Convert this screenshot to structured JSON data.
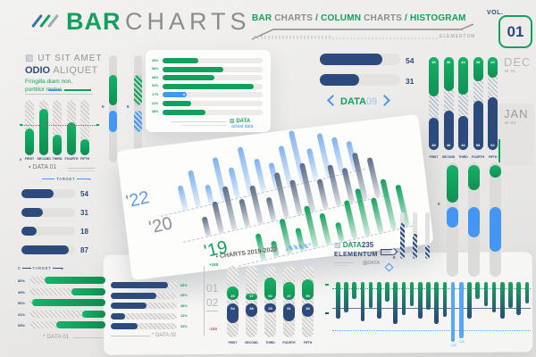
{
  "header": {
    "title_bold": "BAR",
    "title_light": "CHARTS",
    "subtitle_segments": [
      {
        "text": "BAR",
        "tone": "green"
      },
      {
        "text": " CHARTS ",
        "tone": "gray"
      },
      {
        "text": "/ ",
        "tone": "green"
      },
      {
        "text": "COLUMN",
        "tone": "green"
      },
      {
        "text": " CHARTS ",
        "tone": "gray"
      },
      {
        "text": "/ ",
        "tone": "green"
      },
      {
        "text": "HISTOGRAM",
        "tone": "green"
      }
    ],
    "subtitle_note": "ELEMENTUM",
    "vol_label": "VOL.",
    "vol_number": "01"
  },
  "intro": {
    "icon": "hatch-square-icon",
    "line1": "UT SIT AMET",
    "line2_bold": "ODIO",
    "line2_light": "ALIQUET",
    "desc": "Fringilla diam non, porttitor metus."
  },
  "colors": {
    "green": "#12A15C",
    "navy": "#2C4A7C",
    "blue": "#4596F2",
    "light_blue": "#57A7F6",
    "back_blue": "#7FB3F0",
    "slate": "#5C6E88",
    "track": "#DCDBD9",
    "text_gray": "#9B9B99",
    "minus_red": "#B0584A"
  },
  "chart_data": [
    {
      "id": "intro-columns",
      "type": "bar",
      "title": "DATA 01",
      "zero_label": "0",
      "categories": [
        "FIRST",
        "SECOND",
        "THIRD",
        "FOURTH",
        "FIFTH"
      ],
      "values": [
        48,
        84,
        37,
        60,
        29
      ],
      "target_line": 55,
      "ylim": [
        0,
        100
      ],
      "caption": "DATA 01"
    },
    {
      "id": "navy-target-bars",
      "type": "bar",
      "orientation": "horizontal",
      "label": "TARGET",
      "values": [
        54,
        31,
        18,
        87
      ],
      "xlim": [
        0,
        100
      ]
    },
    {
      "id": "green-target-bars",
      "type": "bar",
      "orientation": "horizontal",
      "label": "TARGET",
      "zero_label": "0",
      "caption": "DATA 01",
      "categories": [
        "80%",
        "45%",
        "96%",
        "31%",
        "65%"
      ],
      "values": [
        80,
        45,
        96,
        31,
        65
      ],
      "align": "right"
    },
    {
      "id": "card-hbars",
      "type": "bar",
      "orientation": "horizontal",
      "categories": [
        "30%",
        "58%",
        "48%",
        "92%",
        "17%",
        "22%",
        "38%"
      ],
      "values": [
        30,
        58,
        48,
        92,
        17,
        22,
        38
      ],
      "highlight_index": 4,
      "caption": "DATA",
      "caption_sub": "actual data"
    },
    {
      "id": "pill-duo",
      "type": "bar",
      "zero_labels": [
        "0",
        "0"
      ],
      "series": [
        {
          "name": "solid",
          "up": 34,
          "down": 24
        },
        {
          "name": "hatched",
          "up": 34,
          "down": 24
        }
      ]
    },
    {
      "id": "perspective-columns",
      "type": "bar",
      "caption": "CHARTS 2019-2022",
      "series": [
        {
          "name": "'22",
          "color": "#7FB3F0",
          "label_color": "#5E9BE8",
          "values": [
            28,
            42,
            22,
            50,
            35,
            55,
            38,
            30,
            46,
            60,
            36,
            50,
            42,
            34
          ]
        },
        {
          "name": "'20",
          "color": "#5C6E88",
          "label_color": "#8A8F98",
          "values": [
            22,
            36,
            50,
            32,
            44,
            27,
            52,
            40,
            56,
            34,
            47,
            40,
            54,
            45
          ]
        },
        {
          "name": "'19",
          "color": "#12A15C",
          "label_color": "#12A15C",
          "values": [
            30,
            18,
            40,
            26,
            48,
            36,
            22,
            44,
            54,
            40,
            58,
            48
          ]
        }
      ]
    },
    {
      "id": "data09-bars",
      "type": "bar",
      "orientation": "horizontal",
      "label_bold": "DATA",
      "label_num": "09",
      "values": [
        54,
        31
      ],
      "xlim": [
        0,
        100
      ]
    },
    {
      "id": "dec-jan-columns",
      "type": "bar",
      "categories": [
        "FIRST",
        "SECOND",
        "THIRD",
        "FOURTH",
        "FIFTH"
      ],
      "side_labels": [
        {
          "month": "DEC",
          "week": "W 01"
        },
        {
          "month": "JAN",
          "week": "W 02"
        }
      ],
      "series": [
        {
          "name": "top",
          "color": "green",
          "values": [
            46,
            40,
            44,
            28,
            24
          ]
        },
        {
          "name": "bottom",
          "color": "navy",
          "values": [
            38,
            46,
            40,
            58,
            62
          ]
        }
      ]
    },
    {
      "id": "grouped-pills",
      "type": "bar",
      "axis_top": "+100",
      "axis_bottom": "-100",
      "legend": [
        "01",
        "02"
      ],
      "categories": [
        "FIRST",
        "SECOND",
        "THIRD",
        "FOURTH",
        "FIFTH"
      ],
      "series": [
        {
          "name": "01",
          "color": "green",
          "values": [
            35,
            17,
            60,
            47,
            55
          ]
        },
        {
          "name": "02",
          "color": "navy",
          "values": [
            54,
            38,
            25,
            51,
            38
          ]
        }
      ]
    },
    {
      "id": "data02-bars",
      "type": "bar",
      "orientation": "horizontal",
      "caption": "DATA 02",
      "categories": [
        "85%",
        "65%",
        "48%",
        "12%",
        "33%"
      ],
      "values": [
        85,
        65,
        48,
        12,
        33
      ]
    },
    {
      "id": "right-pills",
      "type": "bar",
      "zero_label": "0",
      "series": [
        {
          "name": "up",
          "color": "green",
          "values": [
            42,
            28,
            14
          ]
        },
        {
          "name": "down",
          "color": "blue",
          "values": [
            23,
            34,
            50
          ]
        }
      ]
    },
    {
      "id": "mini-hatch",
      "type": "bar",
      "zero_label": "0",
      "values": [
        40,
        28,
        15
      ]
    },
    {
      "id": "histogram",
      "type": "bar",
      "title_bold": "DATA",
      "title_num": "235",
      "subtitle": "ELEMENTUM",
      "small_label": "DATA",
      "values": [
        34,
        27,
        12,
        37,
        22,
        34,
        15,
        40,
        30,
        20,
        34,
        24,
        40,
        32,
        60,
        56,
        34,
        12,
        20,
        27,
        34,
        22,
        30,
        17
      ],
      "highlight_indices": [
        14,
        15
      ],
      "highlight_labels": [
        "-120",
        "-110"
      ]
    }
  ]
}
